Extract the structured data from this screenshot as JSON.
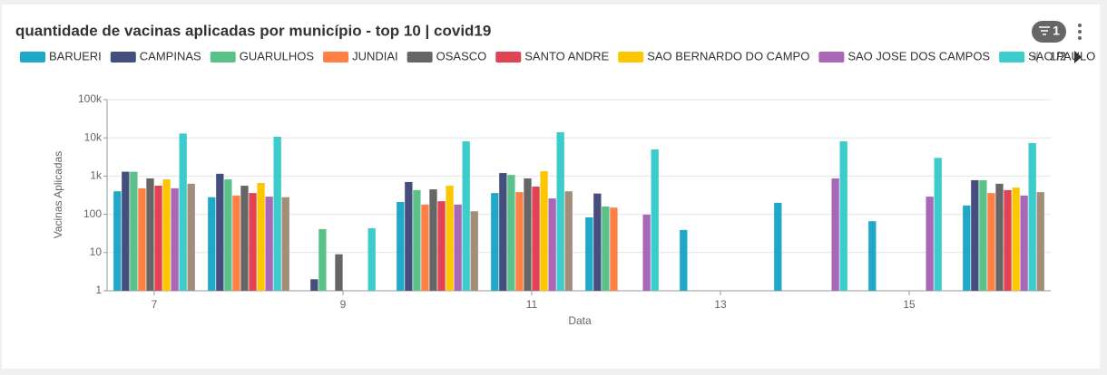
{
  "chart_data": {
    "type": "bar",
    "title": "quantidade de vacinas aplicadas por município - top 10 | covid19",
    "x_label": "Data",
    "y_label": "Vacinas Aplicadas",
    "filter_count": "1",
    "legend_page": "1/2",
    "log_scale": true,
    "grid": true,
    "x": [
      7,
      8,
      9,
      10,
      11,
      12,
      13,
      14,
      15,
      16
    ],
    "xlim": [
      6.5,
      16.5
    ],
    "xticks": [
      7,
      9,
      11,
      13,
      15
    ],
    "ylim": [
      1,
      100000
    ],
    "yticks": [
      1,
      10,
      100,
      {
        "value": 1000,
        "label": "1k"
      },
      {
        "value": 10000,
        "label": "10k"
      },
      {
        "value": 100000,
        "label": "100k"
      }
    ],
    "series": [
      {
        "name": "BARUERI",
        "color": "#1fa8c9",
        "values": [
          400,
          280,
          null,
          210,
          360,
          83,
          39,
          200,
          66,
          170
        ]
      },
      {
        "name": "CAMPINAS",
        "color": "#454e7c",
        "values": [
          1300,
          1150,
          2,
          700,
          1200,
          350,
          null,
          null,
          null,
          780
        ]
      },
      {
        "name": "GUARULHOS",
        "color": "#5ac189",
        "values": [
          1300,
          820,
          41,
          430,
          1070,
          160,
          null,
          null,
          null,
          780
        ]
      },
      {
        "name": "JUNDIAI",
        "color": "#ff7f44",
        "values": [
          480,
          310,
          null,
          180,
          380,
          150,
          null,
          null,
          null,
          360
        ]
      },
      {
        "name": "OSASCO",
        "color": "#666666",
        "values": [
          870,
          560,
          9,
          450,
          870,
          null,
          null,
          null,
          null,
          630
        ]
      },
      {
        "name": "SANTO ANDRE",
        "color": "#e04355",
        "values": [
          560,
          360,
          null,
          220,
          530,
          null,
          null,
          null,
          null,
          430
        ]
      },
      {
        "name": "SAO BERNARDO DO CAMPO",
        "color": "#fcc700",
        "values": [
          820,
          660,
          null,
          560,
          1340,
          null,
          null,
          null,
          null,
          500
        ]
      },
      {
        "name": "SAO JOSE DOS CAMPOS",
        "color": "#a868b7",
        "values": [
          480,
          290,
          null,
          180,
          260,
          98,
          null,
          870,
          290,
          310
        ]
      },
      {
        "name": "SAO PAULO",
        "color": "#3ccccb",
        "values": [
          13000,
          10700,
          43,
          8100,
          14000,
          5000,
          null,
          8100,
          3000,
          7300
        ]
      },
      {
        "color": "#a38f79",
        "values": [
          630,
          280,
          null,
          120,
          400,
          null,
          null,
          null,
          null,
          380
        ]
      }
    ]
  }
}
